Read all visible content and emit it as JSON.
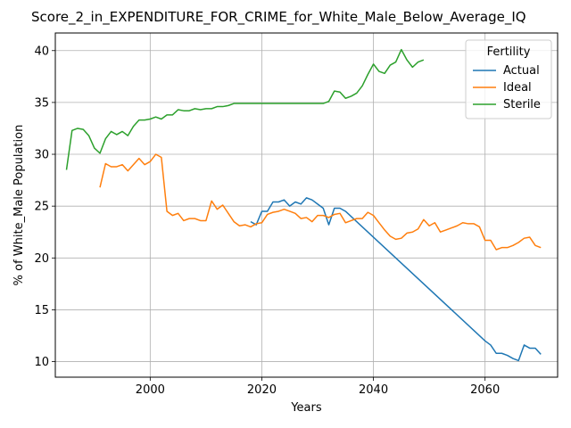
{
  "chart_data": {
    "type": "line",
    "title": "Score_2_in_EXPENDITURE_FOR_CRIME_for_White_Male_Below_Average_IQ",
    "xlabel": "Years",
    "ylabel": "% of White_Male Population",
    "xlim": [
      1983,
      2073
    ],
    "ylim": [
      8.5,
      41.7
    ],
    "xticks": [
      2000,
      2020,
      2040,
      2060
    ],
    "yticks": [
      10,
      15,
      20,
      25,
      30,
      35,
      40
    ],
    "grid": true,
    "legend": {
      "title": "Fertility",
      "placement": "top-right"
    },
    "series": [
      {
        "name": "Actual",
        "color": "#1f77b4",
        "points": [
          [
            2018,
            23.5
          ],
          [
            2019,
            23.2
          ],
          [
            2020,
            24.5
          ],
          [
            2021,
            24.5
          ],
          [
            2022,
            25.4
          ],
          [
            2023,
            25.4
          ],
          [
            2024,
            25.6
          ],
          [
            2025,
            25.0
          ],
          [
            2026,
            25.4
          ],
          [
            2027,
            25.2
          ],
          [
            2028,
            25.8
          ],
          [
            2029,
            25.6
          ],
          [
            2030,
            25.2
          ],
          [
            2031,
            24.8
          ],
          [
            2032,
            23.2
          ],
          [
            2033,
            24.8
          ],
          [
            2034,
            24.8
          ],
          [
            2035,
            24.5
          ],
          [
            2060,
            12.0
          ],
          [
            2061,
            11.6
          ],
          [
            2062,
            10.8
          ],
          [
            2063,
            10.8
          ],
          [
            2064,
            10.6
          ],
          [
            2065,
            10.3
          ],
          [
            2066,
            10.1
          ],
          [
            2067,
            11.6
          ],
          [
            2068,
            11.3
          ],
          [
            2069,
            11.3
          ],
          [
            2070,
            10.7
          ]
        ]
      },
      {
        "name": "Ideal",
        "color": "#ff7f0e",
        "points": [
          [
            1991,
            26.8
          ],
          [
            1992,
            29.1
          ],
          [
            1993,
            28.8
          ],
          [
            1994,
            28.8
          ],
          [
            1995,
            29.0
          ],
          [
            1996,
            28.4
          ],
          [
            1997,
            29.0
          ],
          [
            1998,
            29.6
          ],
          [
            1999,
            29.0
          ],
          [
            2000,
            29.3
          ],
          [
            2001,
            30.0
          ],
          [
            2002,
            29.7
          ],
          [
            2003,
            24.5
          ],
          [
            2004,
            24.1
          ],
          [
            2005,
            24.3
          ],
          [
            2006,
            23.6
          ],
          [
            2007,
            23.8
          ],
          [
            2008,
            23.8
          ],
          [
            2009,
            23.6
          ],
          [
            2010,
            23.6
          ],
          [
            2011,
            25.5
          ],
          [
            2012,
            24.7
          ],
          [
            2013,
            25.1
          ],
          [
            2014,
            24.3
          ],
          [
            2015,
            23.5
          ],
          [
            2016,
            23.1
          ],
          [
            2017,
            23.2
          ],
          [
            2018,
            23.0
          ],
          [
            2019,
            23.3
          ],
          [
            2020,
            23.4
          ],
          [
            2021,
            24.2
          ],
          [
            2022,
            24.4
          ],
          [
            2023,
            24.5
          ],
          [
            2024,
            24.7
          ],
          [
            2025,
            24.5
          ],
          [
            2026,
            24.3
          ],
          [
            2027,
            23.8
          ],
          [
            2028,
            23.9
          ],
          [
            2029,
            23.5
          ],
          [
            2030,
            24.1
          ],
          [
            2031,
            24.1
          ],
          [
            2032,
            23.9
          ],
          [
            2033,
            24.2
          ],
          [
            2034,
            24.3
          ],
          [
            2035,
            23.4
          ],
          [
            2036,
            23.6
          ],
          [
            2037,
            23.8
          ],
          [
            2038,
            23.8
          ],
          [
            2039,
            24.4
          ],
          [
            2040,
            24.1
          ],
          [
            2041,
            23.4
          ],
          [
            2042,
            22.7
          ],
          [
            2043,
            22.1
          ],
          [
            2044,
            21.8
          ],
          [
            2045,
            21.9
          ],
          [
            2046,
            22.4
          ],
          [
            2047,
            22.5
          ],
          [
            2048,
            22.8
          ],
          [
            2049,
            23.7
          ],
          [
            2050,
            23.1
          ],
          [
            2051,
            23.4
          ],
          [
            2052,
            22.5
          ],
          [
            2053,
            22.7
          ],
          [
            2054,
            22.9
          ],
          [
            2055,
            23.1
          ],
          [
            2056,
            23.4
          ],
          [
            2057,
            23.3
          ],
          [
            2058,
            23.3
          ],
          [
            2059,
            23.0
          ],
          [
            2060,
            21.7
          ],
          [
            2061,
            21.7
          ],
          [
            2062,
            20.8
          ],
          [
            2063,
            21.0
          ],
          [
            2064,
            21.0
          ],
          [
            2065,
            21.2
          ],
          [
            2066,
            21.5
          ],
          [
            2067,
            21.9
          ],
          [
            2068,
            22.0
          ],
          [
            2069,
            21.2
          ],
          [
            2070,
            21.0
          ]
        ]
      },
      {
        "name": "Sterile",
        "color": "#2ca02c",
        "points": [
          [
            1985,
            28.5
          ],
          [
            1986,
            32.3
          ],
          [
            1987,
            32.5
          ],
          [
            1988,
            32.4
          ],
          [
            1989,
            31.8
          ],
          [
            1990,
            30.6
          ],
          [
            1991,
            30.1
          ],
          [
            1992,
            31.5
          ],
          [
            1993,
            32.2
          ],
          [
            1994,
            31.9
          ],
          [
            1995,
            32.2
          ],
          [
            1996,
            31.8
          ],
          [
            1997,
            32.7
          ],
          [
            1998,
            33.3
          ],
          [
            1999,
            33.3
          ],
          [
            2000,
            33.4
          ],
          [
            2001,
            33.6
          ],
          [
            2002,
            33.4
          ],
          [
            2003,
            33.8
          ],
          [
            2004,
            33.8
          ],
          [
            2005,
            34.3
          ],
          [
            2006,
            34.2
          ],
          [
            2007,
            34.2
          ],
          [
            2008,
            34.4
          ],
          [
            2009,
            34.3
          ],
          [
            2010,
            34.4
          ],
          [
            2011,
            34.4
          ],
          [
            2012,
            34.6
          ],
          [
            2013,
            34.6
          ],
          [
            2014,
            34.7
          ],
          [
            2015,
            34.9
          ],
          [
            2016,
            34.9
          ],
          [
            2017,
            34.9
          ],
          [
            2018,
            34.9
          ],
          [
            2019,
            34.9
          ],
          [
            2020,
            34.9
          ],
          [
            2021,
            34.9
          ],
          [
            2022,
            34.9
          ],
          [
            2023,
            34.9
          ],
          [
            2024,
            34.9
          ],
          [
            2025,
            34.9
          ],
          [
            2026,
            34.9
          ],
          [
            2027,
            34.9
          ],
          [
            2028,
            34.9
          ],
          [
            2029,
            34.9
          ],
          [
            2030,
            34.9
          ],
          [
            2031,
            34.9
          ],
          [
            2032,
            35.1
          ],
          [
            2033,
            36.1
          ],
          [
            2034,
            36.0
          ],
          [
            2035,
            35.4
          ],
          [
            2036,
            35.6
          ],
          [
            2037,
            35.9
          ],
          [
            2038,
            36.6
          ],
          [
            2039,
            37.7
          ],
          [
            2040,
            38.7
          ],
          [
            2041,
            38.0
          ],
          [
            2042,
            37.8
          ],
          [
            2043,
            38.6
          ],
          [
            2044,
            38.9
          ],
          [
            2045,
            40.1
          ],
          [
            2046,
            39.1
          ],
          [
            2047,
            38.4
          ],
          [
            2048,
            38.9
          ],
          [
            2049,
            39.1
          ]
        ]
      }
    ]
  }
}
